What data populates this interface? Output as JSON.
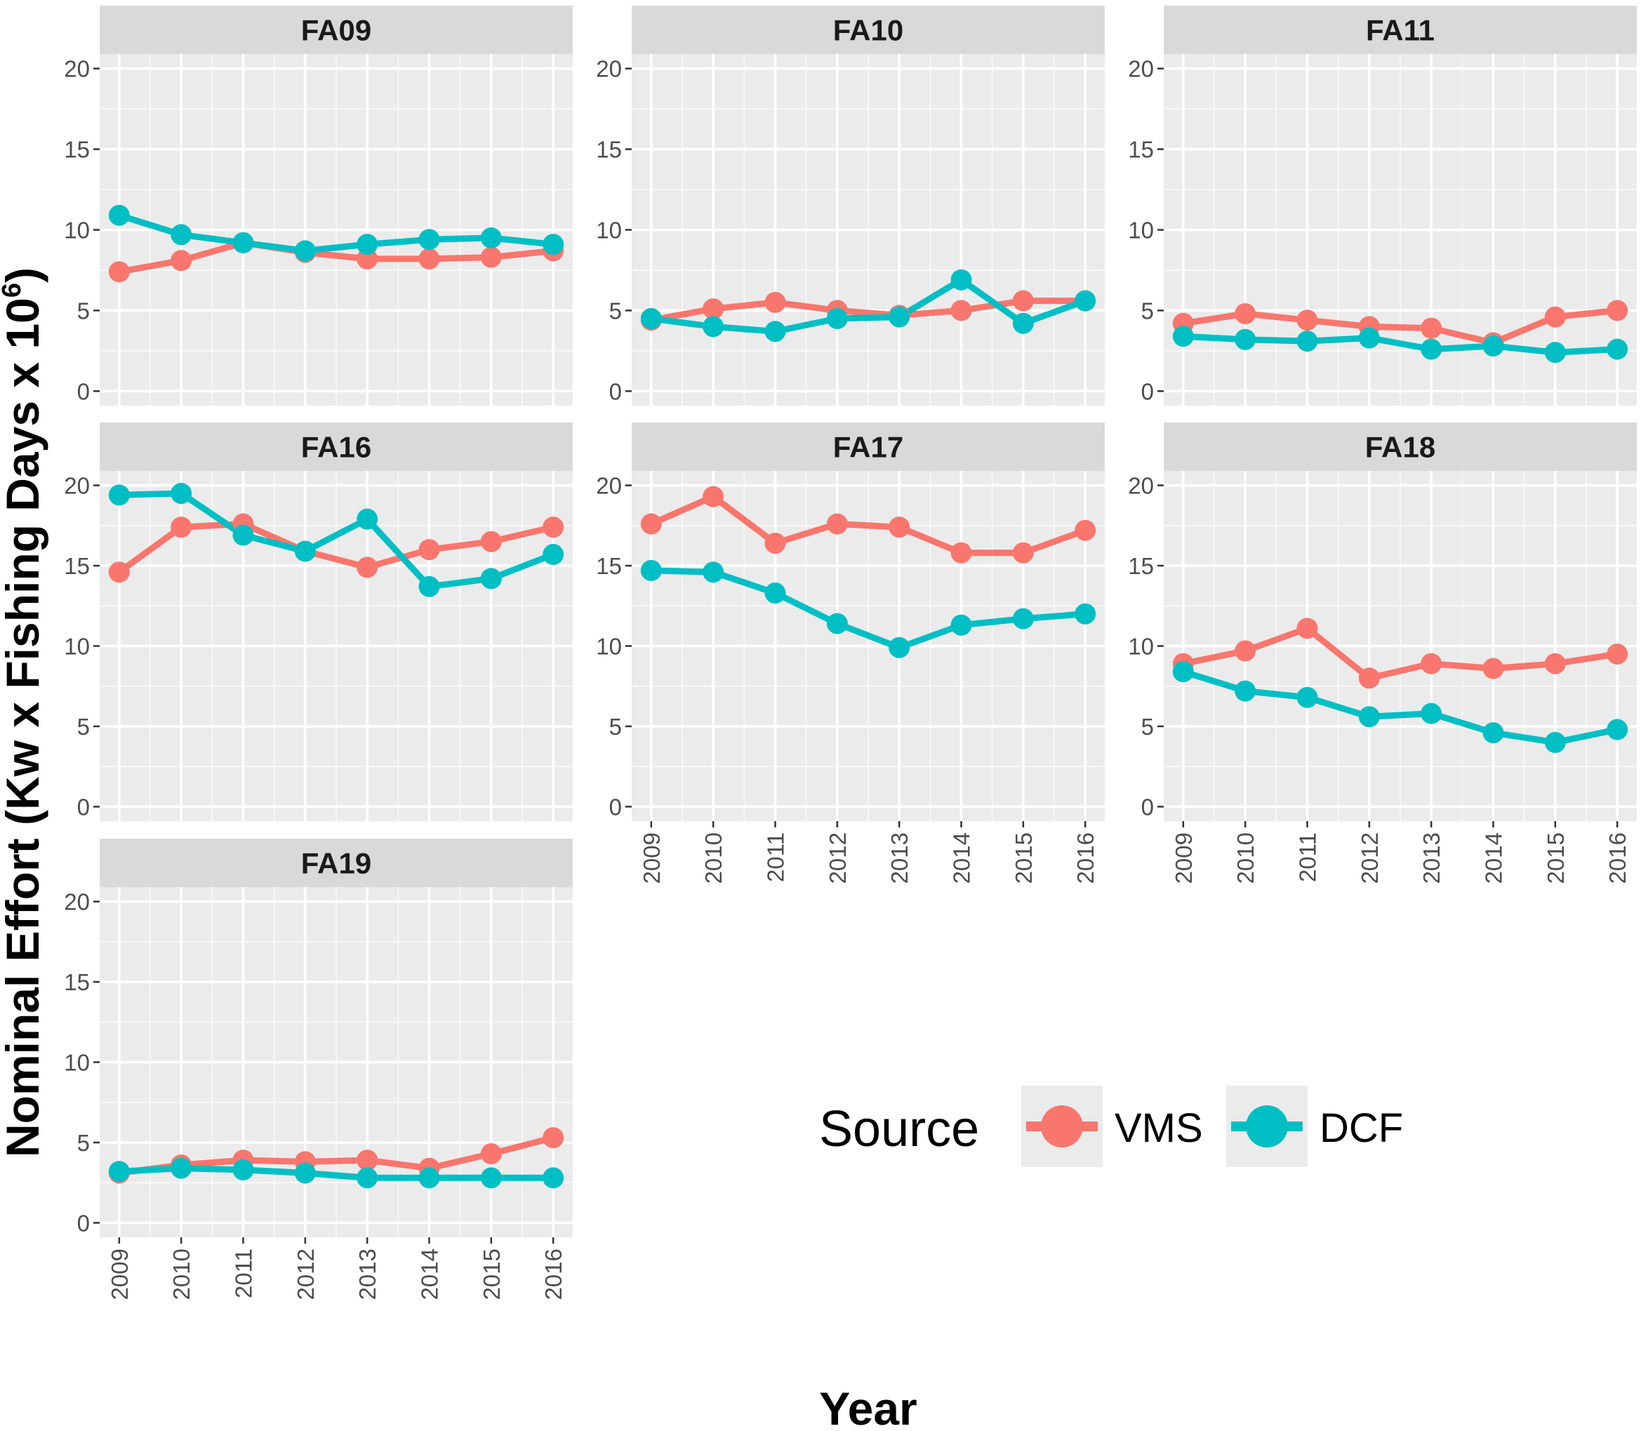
{
  "chart_data": {
    "type": "line",
    "layout": "facet_wrap",
    "xlabel": "Year",
    "ylabel": "Nominal Effort (Kw x Fishing Days x 10",
    "ylabel_superscript": "6",
    "ylabel_suffix": ")",
    "ylim": [
      0,
      20
    ],
    "yticks": [
      0,
      5,
      10,
      15,
      20
    ],
    "x": [
      "2009",
      "2010",
      "2011",
      "2012",
      "2013",
      "2014",
      "2015",
      "2016"
    ],
    "grid": true,
    "legend": {
      "title": "Source",
      "placement": "bottom-right",
      "entries": [
        {
          "name": "VMS",
          "color": "#F8766D"
        },
        {
          "name": "DCF",
          "color": "#00BFC4"
        }
      ]
    },
    "panels": [
      {
        "name": "FA09",
        "series": [
          {
            "name": "VMS",
            "values": [
              7.4,
              8.1,
              9.2,
              8.6,
              8.2,
              8.2,
              8.3,
              8.7
            ]
          },
          {
            "name": "DCF",
            "values": [
              10.9,
              9.7,
              9.2,
              8.7,
              9.1,
              9.4,
              9.5,
              9.1
            ]
          }
        ]
      },
      {
        "name": "FA10",
        "series": [
          {
            "name": "VMS",
            "values": [
              4.4,
              5.1,
              5.5,
              5.0,
              4.7,
              5.0,
              5.6,
              5.6
            ]
          },
          {
            "name": "DCF",
            "values": [
              4.5,
              4.0,
              3.7,
              4.5,
              4.6,
              6.9,
              4.2,
              5.6
            ]
          }
        ]
      },
      {
        "name": "FA11",
        "series": [
          {
            "name": "VMS",
            "values": [
              4.2,
              4.8,
              4.4,
              4.0,
              3.9,
              3.0,
              4.6,
              5.0
            ]
          },
          {
            "name": "DCF",
            "values": [
              3.4,
              3.2,
              3.1,
              3.3,
              2.6,
              2.8,
              2.4,
              2.6
            ]
          }
        ]
      },
      {
        "name": "FA16",
        "series": [
          {
            "name": "VMS",
            "values": [
              14.6,
              17.4,
              17.6,
              15.9,
              14.9,
              16.0,
              16.5,
              17.4
            ]
          },
          {
            "name": "DCF",
            "values": [
              19.4,
              19.5,
              16.9,
              15.9,
              17.9,
              13.7,
              14.2,
              15.7
            ]
          }
        ]
      },
      {
        "name": "FA17",
        "series": [
          {
            "name": "VMS",
            "values": [
              17.6,
              19.3,
              16.4,
              17.6,
              17.4,
              15.8,
              15.8,
              17.2
            ]
          },
          {
            "name": "DCF",
            "values": [
              14.7,
              14.6,
              13.3,
              11.4,
              9.9,
              11.3,
              11.7,
              12.0
            ]
          }
        ]
      },
      {
        "name": "FA18",
        "series": [
          {
            "name": "VMS",
            "values": [
              8.9,
              9.7,
              11.1,
              8.0,
              8.9,
              8.6,
              8.9,
              9.5
            ]
          },
          {
            "name": "DCF",
            "values": [
              8.4,
              7.2,
              6.8,
              5.6,
              5.8,
              4.6,
              4.0,
              4.8
            ]
          }
        ]
      },
      {
        "name": "FA19",
        "series": [
          {
            "name": "VMS",
            "values": [
              3.1,
              3.6,
              3.9,
              3.8,
              3.9,
              3.4,
              4.3,
              5.3
            ]
          },
          {
            "name": "DCF",
            "values": [
              3.2,
              3.4,
              3.3,
              3.1,
              2.8,
              2.8,
              2.8,
              2.8
            ]
          }
        ]
      }
    ]
  }
}
